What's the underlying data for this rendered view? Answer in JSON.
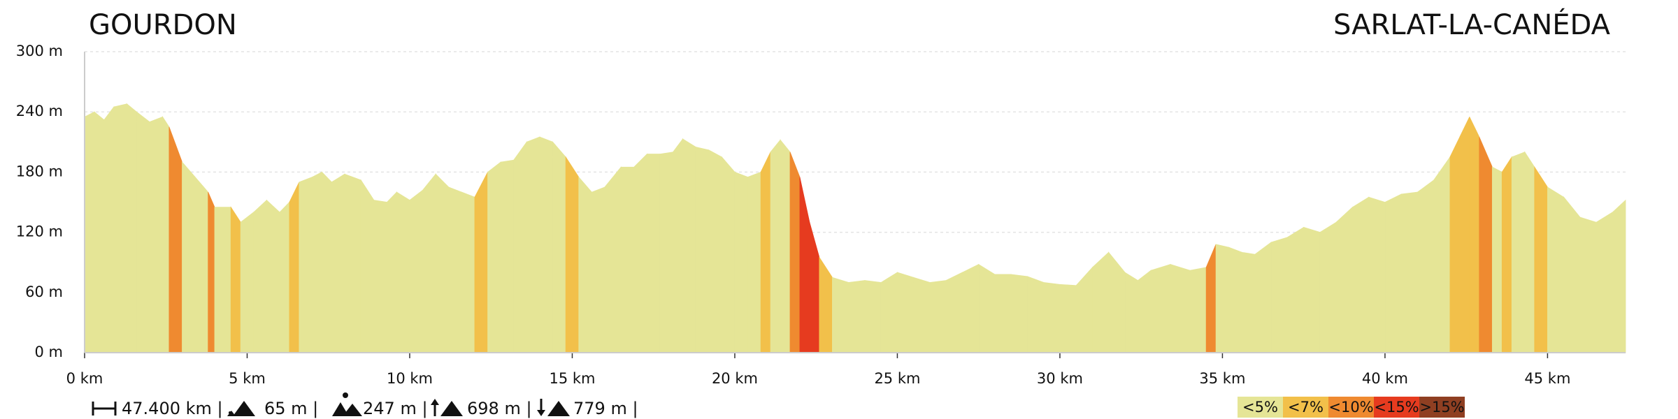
{
  "chart_data": {
    "type": "area",
    "title": "GOURDON",
    "subtitle": "SARLAT-LA-CANÉDA",
    "x": [
      0,
      0.3,
      0.6,
      0.9,
      1.3,
      1.6,
      2.0,
      2.4,
      2.6,
      3.0,
      3.4,
      3.8,
      4.0,
      4.5,
      4.8,
      5.2,
      5.6,
      6.0,
      6.3,
      6.6,
      7.0,
      7.3,
      7.6,
      8.0,
      8.5,
      8.9,
      9.3,
      9.6,
      10.0,
      10.4,
      10.8,
      11.2,
      11.6,
      12.0,
      12.4,
      12.8,
      13.2,
      13.6,
      14.0,
      14.4,
      14.8,
      15.2,
      15.6,
      16.0,
      16.5,
      16.9,
      17.3,
      17.7,
      18.1,
      18.4,
      18.8,
      19.2,
      19.6,
      20.0,
      20.4,
      20.8,
      21.1,
      21.4,
      21.7,
      22.0,
      22.3,
      22.6,
      23.0,
      23.5,
      24.0,
      24.5,
      25.0,
      25.5,
      26.0,
      26.5,
      27.0,
      27.5,
      28.0,
      28.5,
      29.0,
      29.5,
      30.0,
      30.5,
      31.0,
      31.5,
      32.0,
      32.4,
      32.8,
      33.4,
      34.0,
      34.5,
      34.8,
      35.2,
      35.6,
      36.0,
      36.5,
      37.0,
      37.5,
      38.0,
      38.5,
      39.0,
      39.5,
      40.0,
      40.5,
      41.0,
      41.5,
      42.0,
      42.3,
      42.6,
      42.9,
      43.3,
      43.6,
      43.9,
      44.3,
      44.6,
      45.0,
      45.5,
      46.0,
      46.5,
      47.0,
      47.4
    ],
    "y": [
      235,
      240,
      232,
      245,
      248,
      240,
      230,
      235,
      225,
      190,
      175,
      160,
      145,
      145,
      130,
      140,
      152,
      140,
      150,
      170,
      175,
      180,
      170,
      178,
      172,
      152,
      150,
      160,
      152,
      162,
      178,
      165,
      160,
      155,
      180,
      190,
      192,
      210,
      215,
      210,
      195,
      175,
      160,
      165,
      185,
      185,
      198,
      198,
      200,
      213,
      205,
      202,
      195,
      180,
      175,
      180,
      200,
      212,
      200,
      175,
      130,
      95,
      75,
      70,
      72,
      70,
      80,
      75,
      70,
      72,
      80,
      88,
      78,
      78,
      76,
      70,
      68,
      67,
      85,
      100,
      80,
      72,
      82,
      88,
      82,
      85,
      108,
      105,
      100,
      98,
      110,
      115,
      125,
      120,
      130,
      145,
      155,
      150,
      158,
      160,
      172,
      195,
      215,
      235,
      215,
      185,
      180,
      195,
      200,
      185,
      165,
      155,
      135,
      130,
      140,
      152
    ],
    "xlim": [
      0,
      47.4
    ],
    "ylim": [
      0,
      300
    ],
    "xticks": [
      {
        "value": 0,
        "label": "0 km"
      },
      {
        "value": 5,
        "label": "5 km"
      },
      {
        "value": 10,
        "label": "10 km"
      },
      {
        "value": 15,
        "label": "15 km"
      },
      {
        "value": 20,
        "label": "20 km"
      },
      {
        "value": 25,
        "label": "25 km"
      },
      {
        "value": 30,
        "label": "30 km"
      },
      {
        "value": 35,
        "label": "35 km"
      },
      {
        "value": 40,
        "label": "40 km"
      },
      {
        "value": 45,
        "label": "45 km"
      }
    ],
    "yticks": [
      {
        "value": 0,
        "label": "0 m"
      },
      {
        "value": 60,
        "label": "60 m"
      },
      {
        "value": 120,
        "label": "120 m"
      },
      {
        "value": 180,
        "label": "180 m"
      },
      {
        "value": 240,
        "label": "240 m"
      },
      {
        "value": 300,
        "label": "300 m"
      }
    ],
    "grid": true,
    "legend": [
      {
        "value": 5,
        "label": "<5%",
        "color": "#e5e596"
      },
      {
        "value": 7,
        "label": "<7%",
        "color": "#f2c04a"
      },
      {
        "value": 10,
        "label": "<10%",
        "color": "#ef8a30"
      },
      {
        "value": 15,
        "label": "<15%",
        "color": "#e63b1f"
      },
      {
        "value": 15,
        "label": ">15%",
        "color": "#8f3f22"
      }
    ],
    "stats": [
      "47.400 km |",
      "65 m |",
      "247 m |",
      "698 m |",
      "779 m |"
    ]
  }
}
